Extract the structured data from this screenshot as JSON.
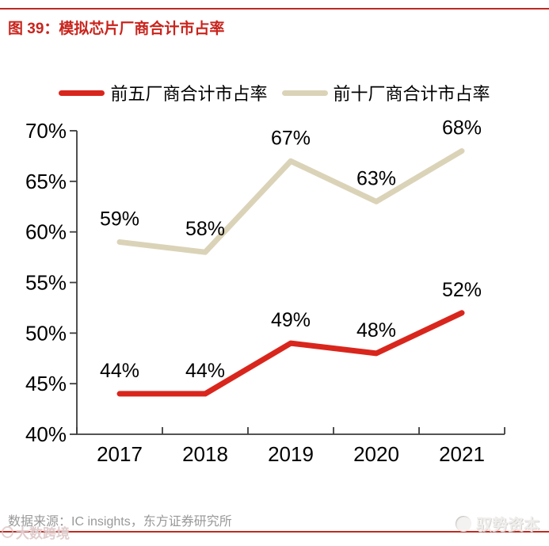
{
  "header": {
    "title": "图 39：模拟芯片厂商合计市占率"
  },
  "chart_data": {
    "type": "line",
    "title": "模拟芯片厂商合计市占率",
    "categories": [
      "2017",
      "2018",
      "2019",
      "2020",
      "2021"
    ],
    "series": [
      {
        "name": "前五厂商合计市占率",
        "values": [
          44,
          44,
          49,
          48,
          52
        ],
        "color": "#D9261D"
      },
      {
        "name": "前十厂商合计市占率",
        "values": [
          59,
          58,
          67,
          63,
          68
        ],
        "color": "#DBD3B8"
      }
    ],
    "xlabel": "",
    "ylabel": "",
    "ylim": [
      40,
      70
    ],
    "ytick_step": 5,
    "ytick_labels": [
      "40%",
      "45%",
      "50%",
      "55%",
      "60%",
      "65%",
      "70%"
    ],
    "value_label_suffix": "%",
    "grid": false,
    "legend_position": "top",
    "axis_color": "#3d3d3d",
    "label_color": "#000000"
  },
  "footer": {
    "source": "数据来源：IC insights，东方证券研究所",
    "watermark_left": "大数跨境",
    "watermark_right": "驭势资本"
  },
  "theme": {
    "rule_red": "#BE2A22",
    "title_red": "#C9241D",
    "source_gray": "#999999"
  }
}
